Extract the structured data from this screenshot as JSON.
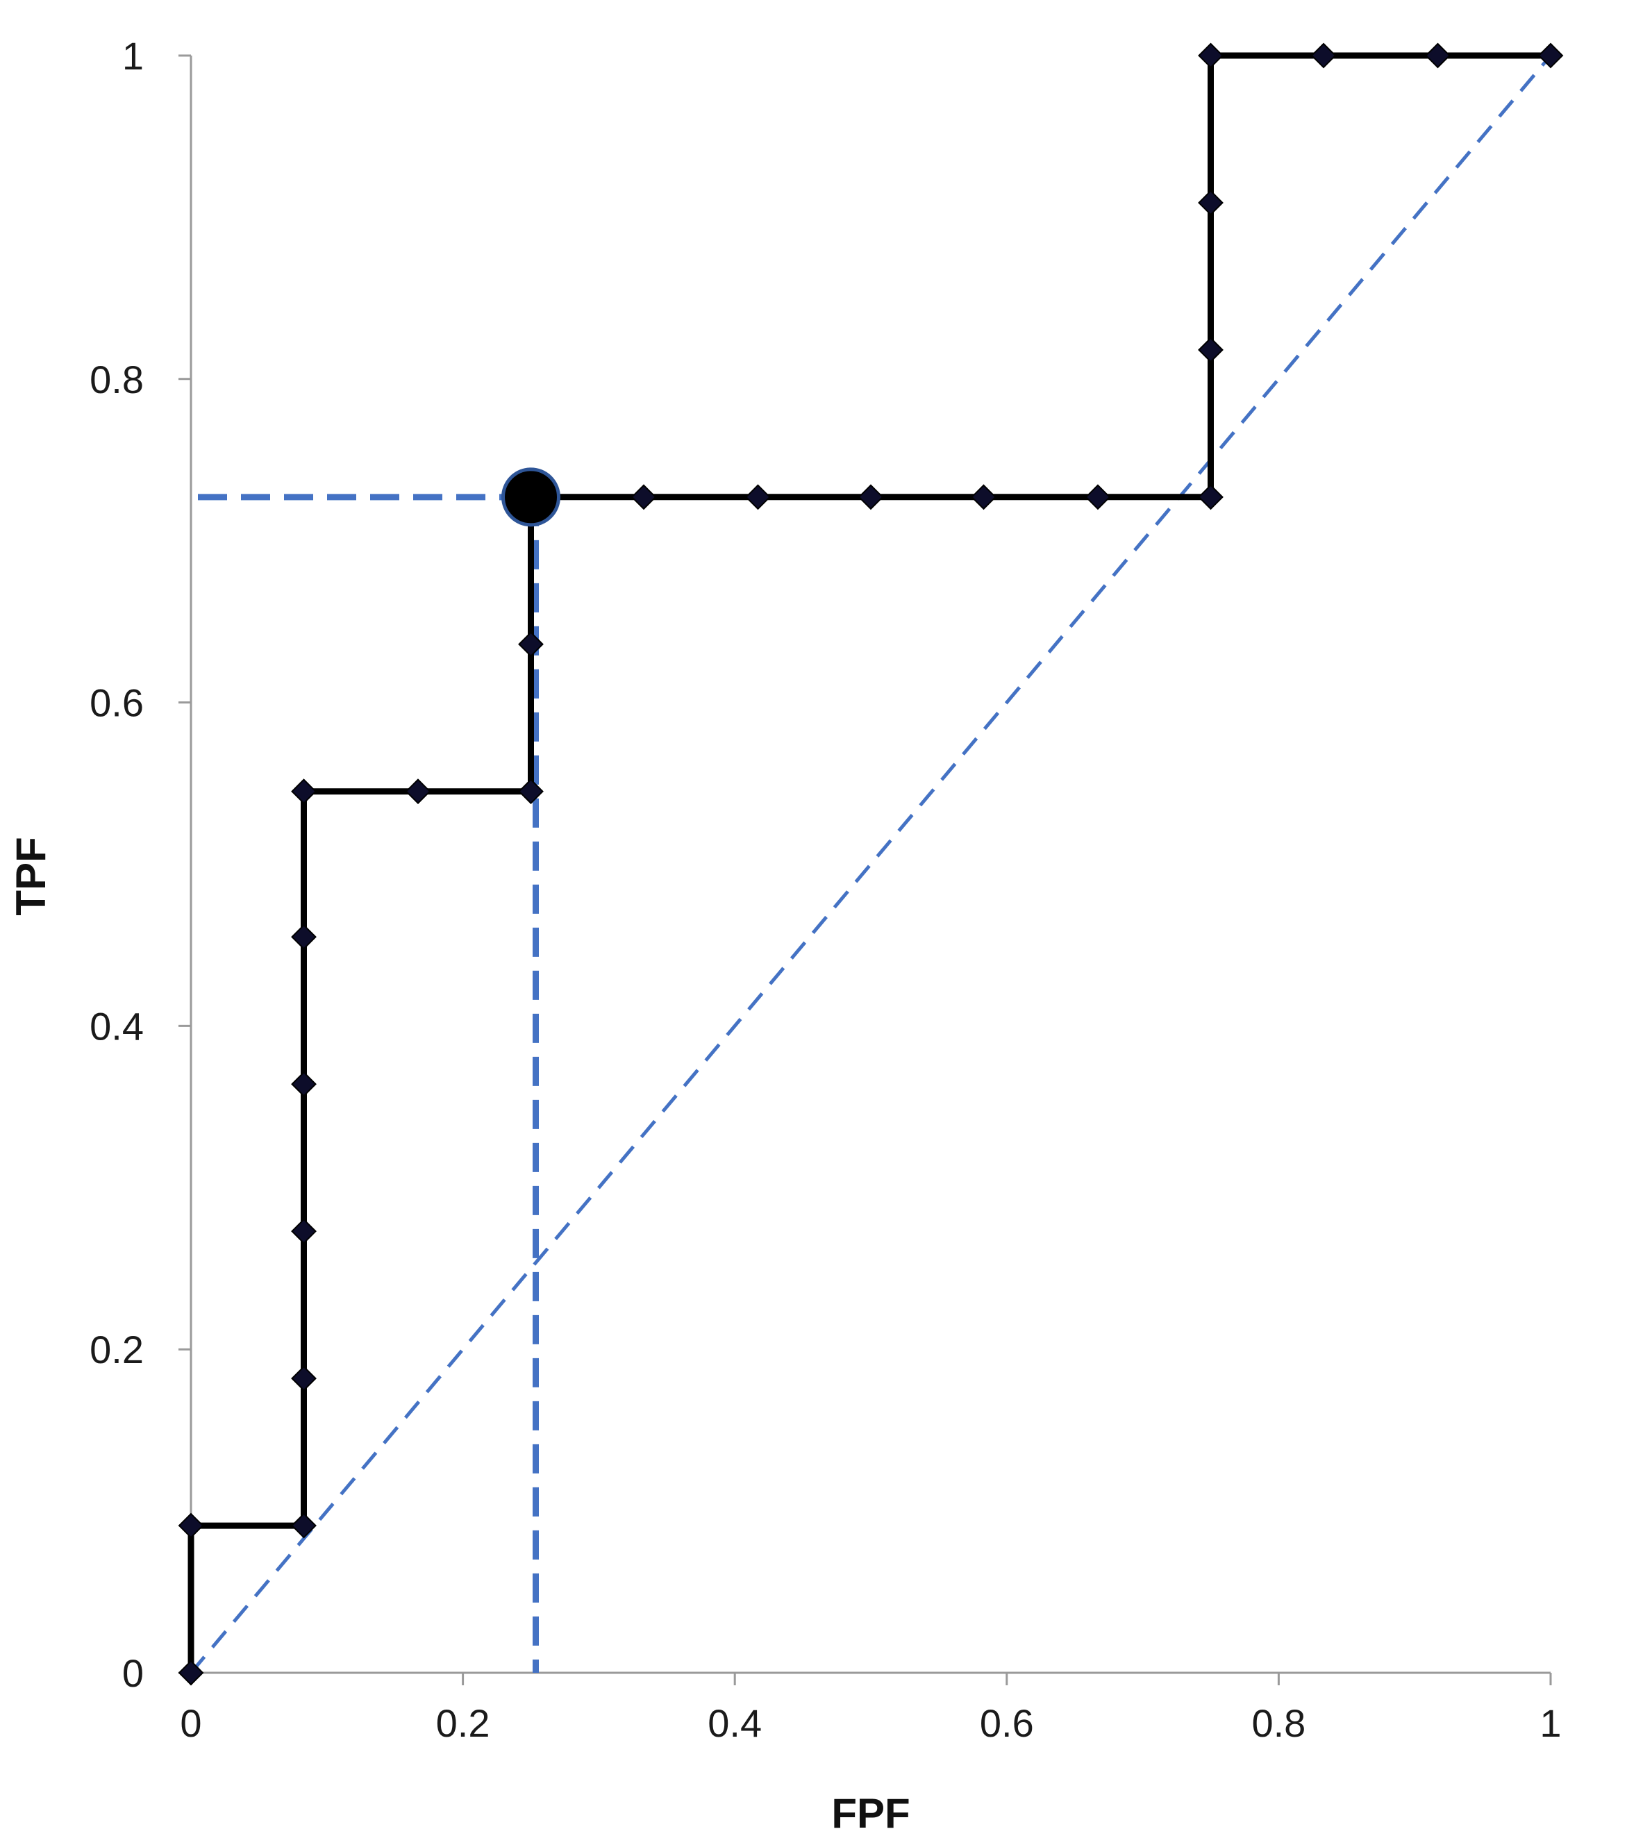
{
  "chart_data": {
    "type": "line",
    "title": "",
    "xlabel": "FPF",
    "ylabel": "TPF",
    "xlim": [
      0,
      1
    ],
    "ylim": [
      0,
      1
    ],
    "x_ticks": [
      "0",
      "0.2",
      "0.4",
      "0.6",
      "0.8",
      "1"
    ],
    "y_ticks": [
      "0",
      "0.2",
      "0.4",
      "0.6",
      "0.8",
      "1"
    ],
    "grid": false,
    "legend": "none",
    "series": [
      {
        "role": "roc-curve",
        "line_style": "solid",
        "color": "#000000",
        "marker": "diamond",
        "points": [
          {
            "x": 0,
            "y": 0
          },
          {
            "x": 0,
            "y": 0.091
          },
          {
            "x": 0.083,
            "y": 0.091
          },
          {
            "x": 0.083,
            "y": 0.182
          },
          {
            "x": 0.083,
            "y": 0.273
          },
          {
            "x": 0.083,
            "y": 0.364
          },
          {
            "x": 0.083,
            "y": 0.455
          },
          {
            "x": 0.083,
            "y": 0.545
          },
          {
            "x": 0.167,
            "y": 0.545
          },
          {
            "x": 0.25,
            "y": 0.545
          },
          {
            "x": 0.25,
            "y": 0.636
          },
          {
            "x": 0.25,
            "y": 0.727
          },
          {
            "x": 0.333,
            "y": 0.727
          },
          {
            "x": 0.417,
            "y": 0.727
          },
          {
            "x": 0.5,
            "y": 0.727
          },
          {
            "x": 0.583,
            "y": 0.727
          },
          {
            "x": 0.667,
            "y": 0.727
          },
          {
            "x": 0.75,
            "y": 0.727
          },
          {
            "x": 0.75,
            "y": 0.818
          },
          {
            "x": 0.75,
            "y": 0.909
          },
          {
            "x": 0.75,
            "y": 1
          },
          {
            "x": 0.833,
            "y": 1
          },
          {
            "x": 0.917,
            "y": 1
          },
          {
            "x": 1,
            "y": 1
          }
        ]
      },
      {
        "role": "chance-diagonal",
        "line_style": "dashed",
        "color": "#4472C4",
        "points": [
          {
            "x": 0,
            "y": 0
          },
          {
            "x": 1,
            "y": 1
          }
        ]
      }
    ],
    "highlight_point": {
      "x": 0.25,
      "y": 0.727,
      "color": "#000000",
      "edge_color": "#2E5597"
    },
    "reference_lines": {
      "color": "#4472C4",
      "line_style": "dashed",
      "horizontal": {
        "y": 0.727,
        "x_from": 0,
        "x_to": 0.25
      },
      "vertical": {
        "x": 0.25,
        "y_from": 0,
        "y_to": 0.727
      }
    }
  }
}
